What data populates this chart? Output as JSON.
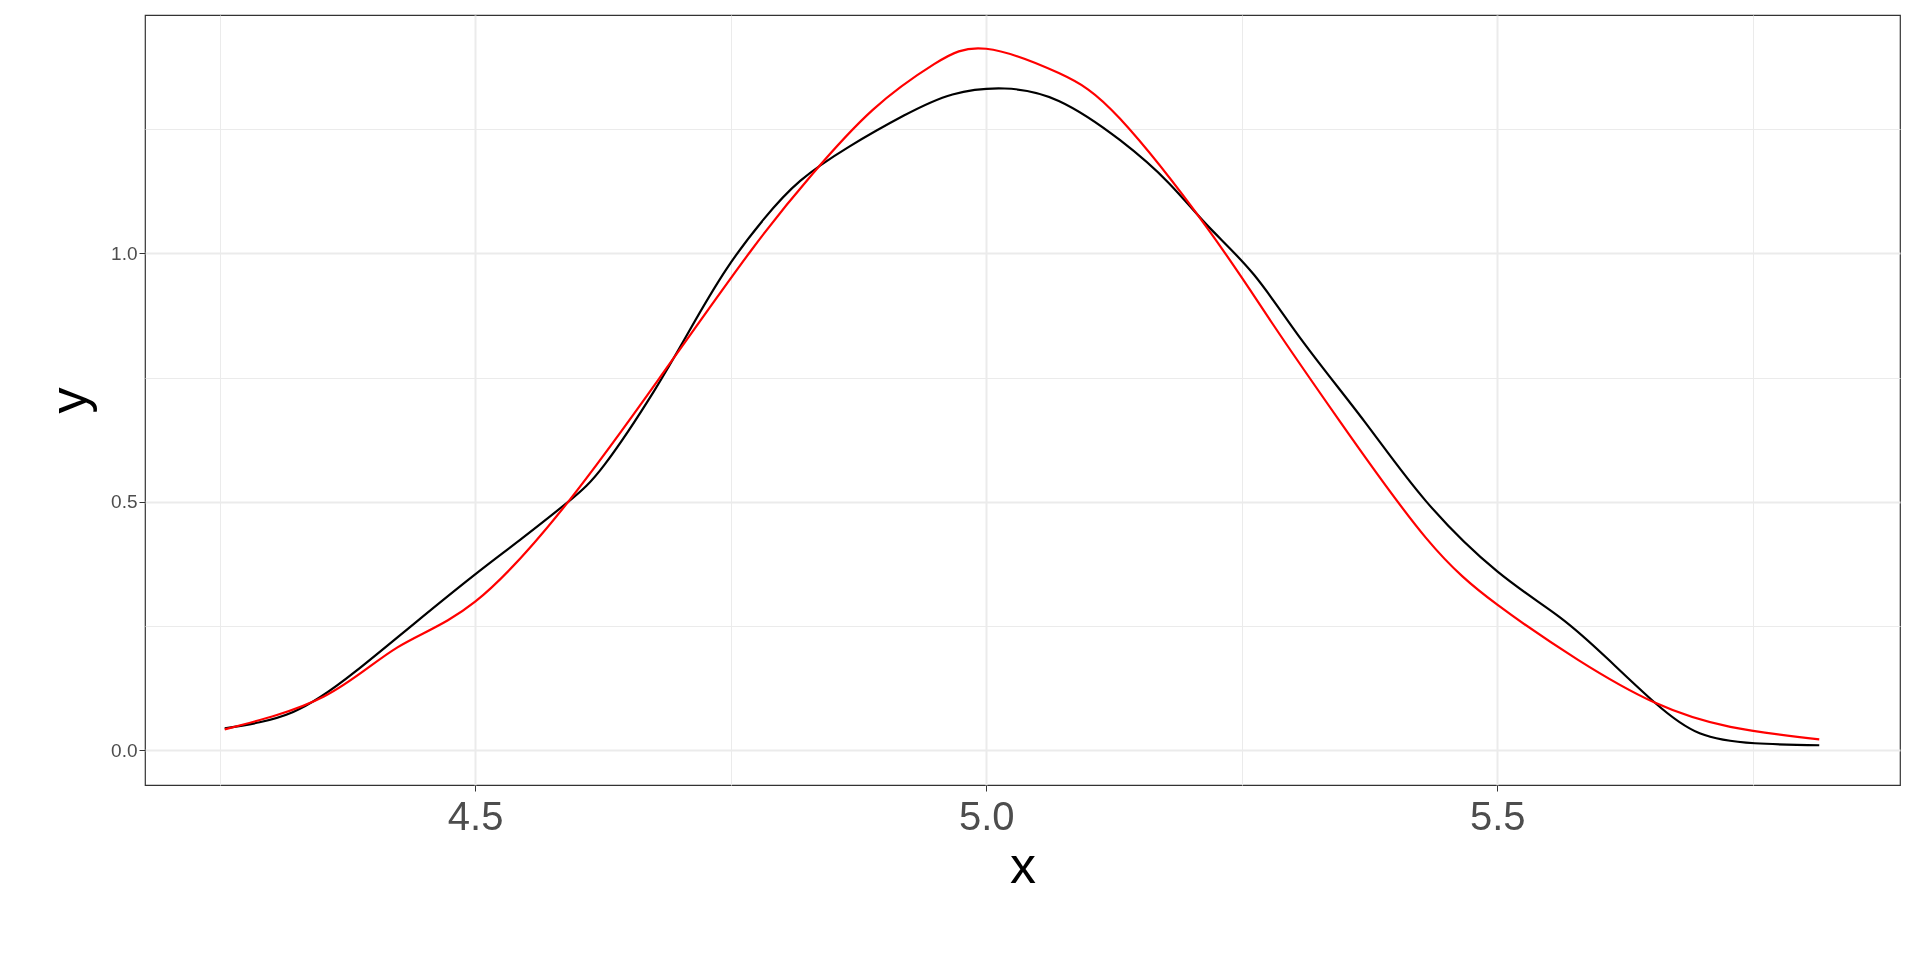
{
  "chart_data": {
    "type": "line",
    "xlabel": "x",
    "ylabel": "y",
    "xlim": [
      4.177,
      5.894
    ],
    "ylim": [
      -0.07,
      1.48
    ],
    "xticks": [
      {
        "value": 4.25,
        "label": null
      },
      4.5,
      {
        "value": 4.75,
        "label": null
      },
      {
        "value": 5.0,
        "label": "5.0"
      },
      {
        "value": 5.25,
        "label": null
      },
      5.5,
      {
        "value": 5.75,
        "label": null
      }
    ],
    "yticks": [
      {
        "value": 0.0,
        "label": "0.0"
      },
      {
        "value": 0.25,
        "label": null
      },
      0.5,
      {
        "value": 0.75,
        "label": null
      },
      {
        "value": 1.0,
        "label": "1.0"
      },
      {
        "value": 1.25,
        "label": null
      }
    ],
    "grid": true,
    "line_style": "solid",
    "marker": "none",
    "series": [
      {
        "color": "#000000",
        "x": [
          4.255,
          4.322,
          4.382,
          4.441,
          4.5,
          4.543,
          4.591,
          4.627,
          4.675,
          4.71,
          4.746,
          4.782,
          4.818,
          4.866,
          4.919,
          4.967,
          5.018,
          5.071,
          5.131,
          5.179,
          5.217,
          5.262,
          5.31,
          5.37,
          5.43,
          5.5,
          5.561,
          5.609,
          5.654,
          5.698,
          5.752,
          5.815
        ],
        "values": [
          0.044,
          0.077,
          0.157,
          0.256,
          0.354,
          0.422,
          0.5,
          0.576,
          0.723,
          0.846,
          0.969,
          1.068,
          1.146,
          1.215,
          1.277,
          1.32,
          1.332,
          1.307,
          1.228,
          1.141,
          1.055,
          0.957,
          0.822,
          0.662,
          0.502,
          0.36,
          0.268,
          0.182,
          0.096,
          0.034,
          0.014,
          0.01
        ]
      },
      {
        "color": "#ff0000",
        "x": [
          4.255,
          4.352,
          4.424,
          4.5,
          4.591,
          4.68,
          4.77,
          4.83,
          4.889,
          4.949,
          5.0,
          5.071,
          5.131,
          5.217,
          5.28,
          5.346,
          5.43,
          5.5,
          5.579,
          5.654,
          5.728,
          5.815
        ],
        "values": [
          0.042,
          0.108,
          0.207,
          0.299,
          0.5,
          0.748,
          1.006,
          1.16,
          1.289,
          1.381,
          1.412,
          1.363,
          1.271,
          1.049,
          0.859,
          0.662,
          0.428,
          0.293,
          0.182,
          0.096,
          0.047,
          0.022
        ]
      }
    ]
  }
}
